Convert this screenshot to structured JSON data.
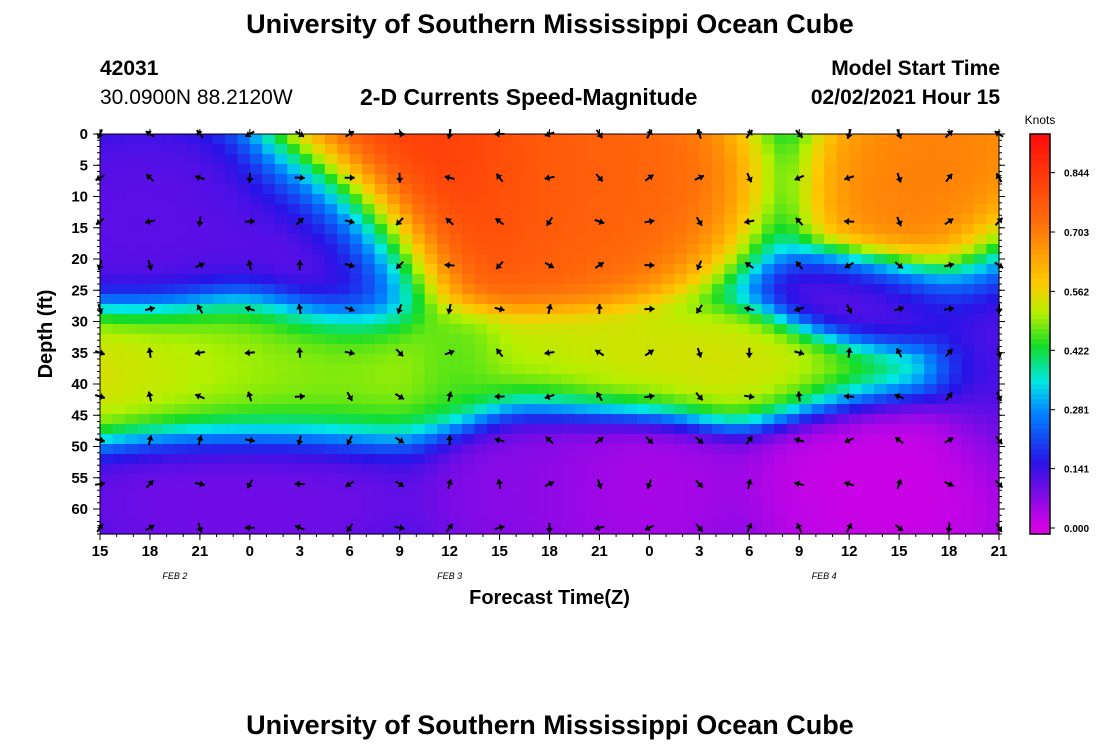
{
  "header": {
    "title": "University of Southern Mississippi Ocean Cube",
    "station_id": "42031",
    "coords": "30.0900N 88.2120W",
    "plot_title": "2-D Currents Speed-Magnitude",
    "model_label": "Model Start Time",
    "model_time": "02/02/2021 Hour 15",
    "footer_title": "University of Southern Mississippi Ocean Cube"
  },
  "chart_data": {
    "type": "heatmap",
    "title": "2-D Currents Speed-Magnitude",
    "xlabel": "Forecast Time(Z)",
    "ylabel": "Depth (ft)",
    "x_ticks": [
      "15",
      "18",
      "21",
      "0",
      "3",
      "6",
      "9",
      "12",
      "15",
      "18",
      "21",
      "0",
      "3",
      "6",
      "9",
      "12",
      "15",
      "18",
      "21"
    ],
    "x_range_hours": [
      0,
      54
    ],
    "date_labels": [
      {
        "label": "FEB 2",
        "hour": 4.5
      },
      {
        "label": "FEB 3",
        "hour": 21
      },
      {
        "label": "FEB 4",
        "hour": 43.5
      }
    ],
    "y_ticks": [
      0,
      5,
      10,
      15,
      20,
      25,
      30,
      35,
      40,
      45,
      50,
      55,
      60
    ],
    "ylim": [
      0,
      64
    ],
    "colorbar": {
      "label": "Knots",
      "ticks": [
        "0.844",
        "0.703",
        "0.562",
        "0.422",
        "0.281",
        "0.141",
        "0.000"
      ],
      "range": [
        0,
        0.95
      ]
    },
    "speed_features": [
      {
        "hour": 19.5,
        "depth": 6,
        "speed": 0.88,
        "sx": 3,
        "sy": 8
      },
      {
        "hour": 23,
        "depth": 7,
        "speed": 0.82,
        "sx": 5,
        "sy": 9
      },
      {
        "hour": 28.5,
        "depth": 7,
        "speed": 0.76,
        "sx": 4,
        "sy": 8
      },
      {
        "hour": 50.5,
        "depth": 9,
        "speed": 0.72,
        "sx": 3,
        "sy": 9
      },
      {
        "hour": 1.5,
        "depth": 38,
        "speed": 0.58,
        "sx": 7,
        "sy": 5
      },
      {
        "hour": 10,
        "depth": 38,
        "speed": 0.48,
        "sx": 6,
        "sy": 6
      },
      {
        "hour": 32,
        "depth": 38,
        "speed": 0.56,
        "sx": 9,
        "sy": 4
      },
      {
        "hour": 21.5,
        "depth": 38,
        "speed": 0.45,
        "sx": 1.5,
        "sy": 4
      },
      {
        "hour": 3,
        "depth": 15,
        "speed": 0.12,
        "sx": 4,
        "sy": 7
      },
      {
        "hour": 14.5,
        "depth": 17,
        "speed": 0.08,
        "sx": 3,
        "sy": 7
      },
      {
        "hour": 47.5,
        "depth": 56,
        "speed": 0.02,
        "sx": 4,
        "sy": 8
      },
      {
        "hour": 26,
        "depth": 56,
        "speed": 0.08,
        "sx": 3,
        "sy": 8
      },
      {
        "hour": 32,
        "depth": 57,
        "speed": 0.05,
        "sx": 3,
        "sy": 7
      },
      {
        "hour": 48,
        "depth": 27,
        "speed": 0.1,
        "sx": 3,
        "sy": 4
      },
      {
        "hour": 8.5,
        "depth": 57,
        "speed": 0.1,
        "sx": 5,
        "sy": 6
      },
      {
        "hour": 54,
        "depth": 35,
        "speed": 0.12,
        "sx": 2,
        "sy": 10
      }
    ],
    "arrow_columns_hours": [
      0,
      3,
      6,
      9,
      12,
      15,
      18,
      21,
      24,
      27,
      30,
      33,
      36,
      39,
      42,
      45,
      48,
      51,
      54
    ],
    "arrow_rows_depth": [
      0,
      7,
      14,
      21,
      28,
      35,
      42,
      49,
      56,
      63
    ]
  }
}
